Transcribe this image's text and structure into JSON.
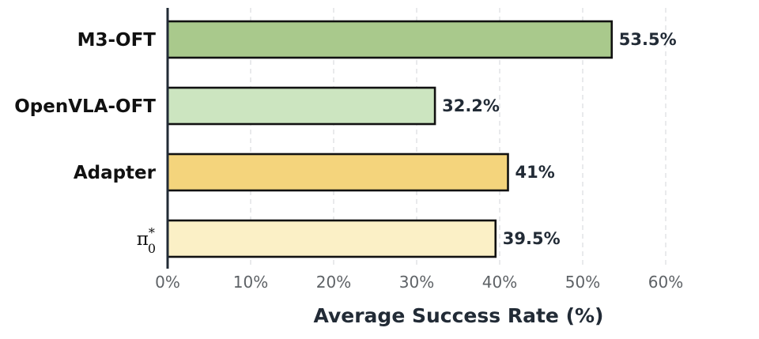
{
  "chart_data": {
    "type": "bar",
    "orientation": "horizontal",
    "categories": [
      "M3-OFT",
      "OpenVLA-OFT",
      "Adapter",
      "π*0"
    ],
    "values": [
      53.5,
      32.2,
      41,
      39.5
    ],
    "value_labels": [
      "53.5%",
      "32.2%",
      "41%",
      "39.5%"
    ],
    "colors": [
      "#a9c98c",
      "#cce5c0",
      "#f4d47c",
      "#fbf0c6"
    ],
    "xlabel": "Average Success Rate (%)",
    "ylabel": "",
    "xlim": [
      0,
      60
    ],
    "xticks": [
      0,
      10,
      20,
      30,
      40,
      50,
      60
    ],
    "xtick_labels": [
      "0%",
      "10%",
      "20%",
      "30%",
      "40%",
      "50%",
      "60%"
    ],
    "grid": "vertical dashed",
    "legend": "none"
  }
}
